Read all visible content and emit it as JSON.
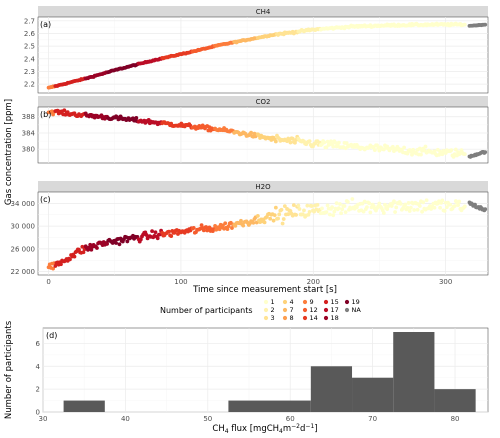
{
  "chart_data": [
    {
      "type": "scatter",
      "tag": "(a)",
      "title": "CH4",
      "xlim": [
        -8,
        332
      ],
      "ylim": [
        2.13,
        2.73
      ],
      "xticks": [
        0,
        100,
        200,
        300
      ],
      "yticks": [
        2.2,
        2.3,
        2.4,
        2.5,
        2.6,
        2.7
      ],
      "ytick_labels": [
        "2.2",
        "2.3",
        "2.4",
        "2.5",
        "2.6",
        "2.7"
      ],
      "curve": {
        "x": [
          0,
          15,
          30,
          50,
          80,
          110,
          130,
          150,
          170,
          200,
          230,
          260,
          290,
          315
        ],
        "y": [
          2.17,
          2.21,
          2.25,
          2.31,
          2.39,
          2.46,
          2.51,
          2.55,
          2.59,
          2.63,
          2.655,
          2.665,
          2.67,
          2.67
        ]
      },
      "na_curve": {
        "x": [
          318,
          330
        ],
        "y": [
          2.66,
          2.67
        ]
      },
      "noise": 0.004
    },
    {
      "type": "scatter",
      "tag": "(b)",
      "title": "CO2",
      "xlim": [
        -8,
        332
      ],
      "ylim": [
        376.6,
        390.4
      ],
      "xticks": [
        0,
        100,
        200,
        300
      ],
      "yticks": [
        380,
        384,
        388
      ],
      "ytick_labels": [
        "380",
        "384",
        "388"
      ],
      "curve": {
        "x": [
          0,
          5,
          20,
          40,
          70,
          100,
          130,
          150,
          170,
          200,
          230,
          260,
          290,
          315
        ],
        "y": [
          389.2,
          389.2,
          388.6,
          388.0,
          387.0,
          385.9,
          384.8,
          383.7,
          382.5,
          381.4,
          380.6,
          379.9,
          379.3,
          378.9
        ]
      },
      "na_curve": {
        "x": [
          318,
          330
        ],
        "y": [
          378.2,
          379.4
        ]
      },
      "noise": 0.5
    },
    {
      "type": "scatter",
      "tag": "(c)",
      "title": "H2O",
      "xlim": [
        -8,
        332
      ],
      "ylim": [
        21400,
        36000
      ],
      "xticks": [
        0,
        100,
        200,
        300
      ],
      "yticks": [
        22000,
        26000,
        30000,
        34000
      ],
      "ytick_labels": [
        "22 000",
        "26 000",
        "30 000",
        "34 000"
      ],
      "curve": {
        "x": [
          0,
          10,
          25,
          45,
          70,
          100,
          130,
          150,
          170,
          190,
          215,
          240,
          265,
          290,
          315
        ],
        "y": [
          22500,
          23800,
          25800,
          27200,
          28100,
          29000,
          29800,
          30800,
          31800,
          32600,
          33100,
          33500,
          33700,
          33600,
          33400
        ]
      },
      "na_curve": {
        "x": [
          318,
          330
        ],
        "y": [
          34000,
          32800
        ]
      },
      "noise": 650
    },
    {
      "type": "bar",
      "tag": "(d)",
      "bins": [
        {
          "x0": 32.5,
          "x1": 37.5,
          "count": 1
        },
        {
          "x0": 52.5,
          "x1": 62.5,
          "count": 1
        },
        {
          "x0": 62.5,
          "x1": 67.5,
          "count": 4
        },
        {
          "x0": 67.5,
          "x1": 72.5,
          "count": 3
        },
        {
          "x0": 72.5,
          "x1": 77.5,
          "count": 7
        },
        {
          "x0": 77.5,
          "x1": 82.5,
          "count": 2
        }
      ],
      "xlim": [
        30,
        84
      ],
      "ylim": [
        0,
        7.35
      ],
      "xticks": [
        30,
        40,
        50,
        60,
        70,
        80
      ],
      "yticks": [
        0,
        2,
        4,
        6
      ],
      "ylabel": "Number of participants",
      "xlabel_parts": [
        "CH",
        "4",
        " flux [mgCH",
        "4",
        "m",
        "−2",
        "d",
        "−1",
        "]"
      ]
    }
  ],
  "shared": {
    "ylabel": "Gas concentration [ppm]",
    "xlabel": "Time since measurement start [s]",
    "legend": {
      "title": "Number of participants",
      "placement": "bottom",
      "items": [
        {
          "label": "1",
          "color": "#ffffcc"
        },
        {
          "label": "2",
          "color": "#fff2ae"
        },
        {
          "label": "3",
          "color": "#ffe394"
        },
        {
          "label": "4",
          "color": "#fed27a"
        },
        {
          "label": "7",
          "color": "#fdb863"
        },
        {
          "label": "8",
          "color": "#fd9d4f"
        },
        {
          "label": "9",
          "color": "#fc7d3c"
        },
        {
          "label": "12",
          "color": "#f55c2d"
        },
        {
          "label": "14",
          "color": "#e63a22"
        },
        {
          "label": "15",
          "color": "#d4201f"
        },
        {
          "label": "17",
          "color": "#bb0d26"
        },
        {
          "label": "18",
          "color": "#9b0326"
        },
        {
          "label": "19",
          "color": "#800026"
        },
        {
          "label": "NA",
          "color": "#7f7f7f"
        }
      ]
    },
    "segments": [
      {
        "x0": 0,
        "x1": 5,
        "color": "#fc7d3c"
      },
      {
        "x0": 5,
        "x1": 28,
        "color": "#d4201f"
      },
      {
        "x0": 28,
        "x1": 45,
        "color": "#9b0326"
      },
      {
        "x0": 45,
        "x1": 68,
        "color": "#800026"
      },
      {
        "x0": 68,
        "x1": 85,
        "color": "#bb0d26"
      },
      {
        "x0": 85,
        "x1": 108,
        "color": "#e63a22"
      },
      {
        "x0": 108,
        "x1": 125,
        "color": "#f55c2d"
      },
      {
        "x0": 125,
        "x1": 140,
        "color": "#fc7d3c"
      },
      {
        "x0": 140,
        "x1": 158,
        "color": "#fdb863"
      },
      {
        "x0": 158,
        "x1": 172,
        "color": "#fed27a"
      },
      {
        "x0": 172,
        "x1": 188,
        "color": "#ffe394"
      },
      {
        "x0": 188,
        "x1": 205,
        "color": "#fff2ae"
      },
      {
        "x0": 205,
        "x1": 316,
        "color": "#ffffcc"
      }
    ],
    "colors": {
      "na": "#7f7f7f",
      "bar": "#595959",
      "strip": "#d9d9d9"
    }
  }
}
